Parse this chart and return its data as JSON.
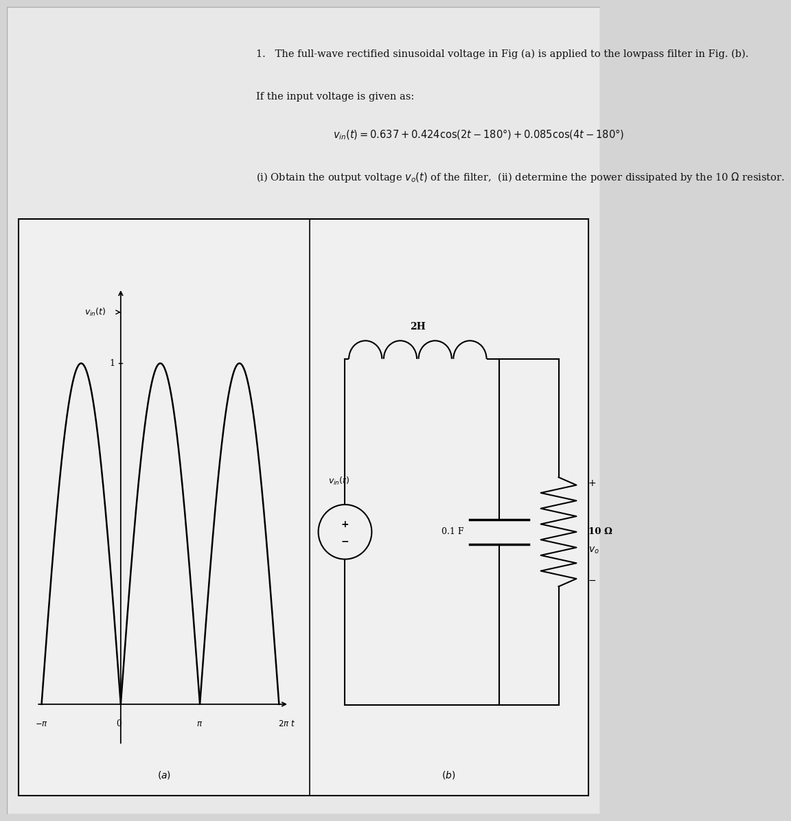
{
  "bg_color": "#d4d4d4",
  "page_color": "#e8e8e8",
  "box_color": "#f0f0f0",
  "text_color": "#111111",
  "line1": "1.   The full-wave rectified sinusoidal voltage in Fig (a) is applied to the lowpass filter in Fig. (b).",
  "line2": "If the input voltage is given as:",
  "line3": "v_in(t) = 0.637 + 0.424 cos(2t - 180°) + 0.085 cos(4t - 180°)",
  "line4": "(i) Obtain the output voltage v_o(t) of the filter,  (ii) determine the power dissipated by the 10 Ω resistor.",
  "inductor_label": "2H",
  "capacitor_label": "0.1 F",
  "resistor_label": "10 Ω",
  "fig_a_label": "(a)",
  "fig_b_label": "(b)"
}
